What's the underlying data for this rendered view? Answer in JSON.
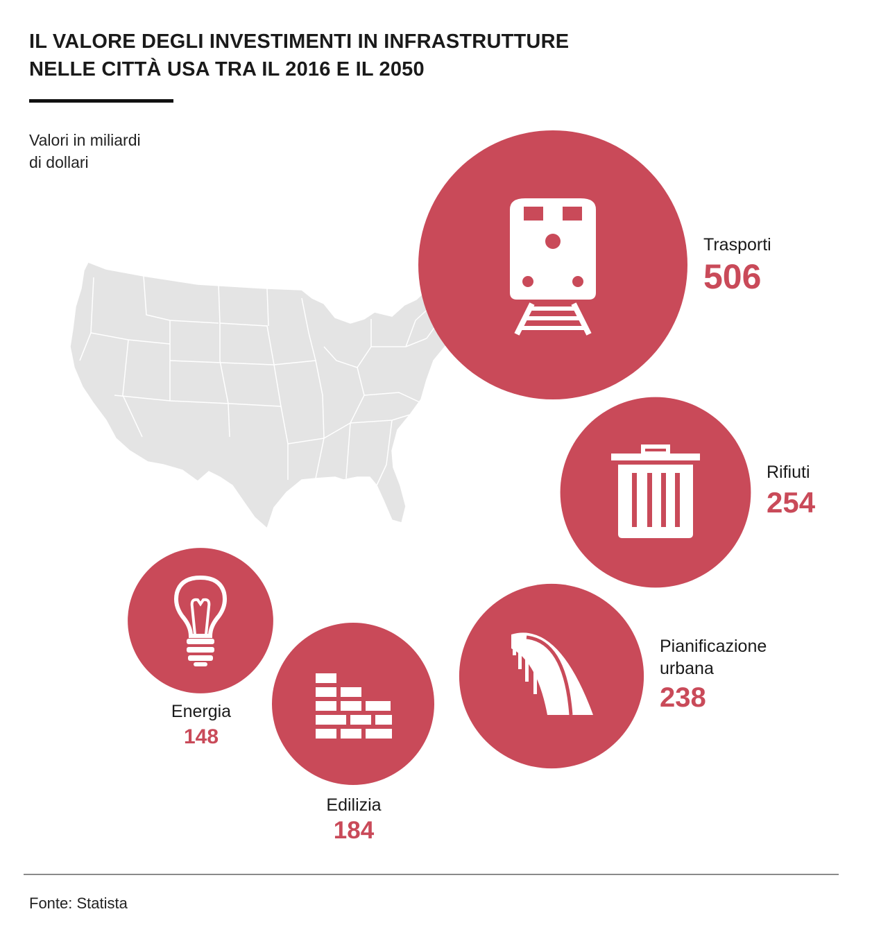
{
  "header": {
    "title_line1": "IL VALORE DEGLI INVESTIMENTI IN INFRASTRUTTURE",
    "title_line2": "NELLE CITTÀ USA TRA IL 2016 E IL 2050",
    "subtitle_line1": "Valori in miliardi",
    "subtitle_line2": "di dollari"
  },
  "colors": {
    "bubble": "#c94a59",
    "map_fill": "#e4e4e4",
    "map_stroke": "#ffffff",
    "value_text": "#c94a59"
  },
  "chart_data": {
    "type": "bubble",
    "title": "IL VALORE DEGLI INVESTIMENTI IN INFRASTRUTTURE NELLE CITTÀ USA TRA IL 2016 E IL 2050",
    "unit": "Valori in miliardi di dollari",
    "categories": [
      "Trasporti",
      "Rifiuti",
      "Pianificazione urbana",
      "Edilizia",
      "Energia"
    ],
    "values": [
      506,
      254,
      238,
      184,
      148
    ],
    "icons": [
      "train-icon",
      "trash-bin-icon",
      "road-icon",
      "brick-wall-icon",
      "light-bulb-icon"
    ]
  },
  "labels": {
    "trasporti": "Trasporti",
    "rifiuti": "Rifiuti",
    "pianificazione_line1": "Pianificazione",
    "pianificazione_line2": "urbana",
    "edilizia": "Edilizia",
    "energia": "Energia"
  },
  "values_text": {
    "trasporti": "506",
    "rifiuti": "254",
    "pianificazione": "238",
    "edilizia": "184",
    "energia": "148"
  },
  "footer": {
    "source": "Fonte: Statista"
  }
}
